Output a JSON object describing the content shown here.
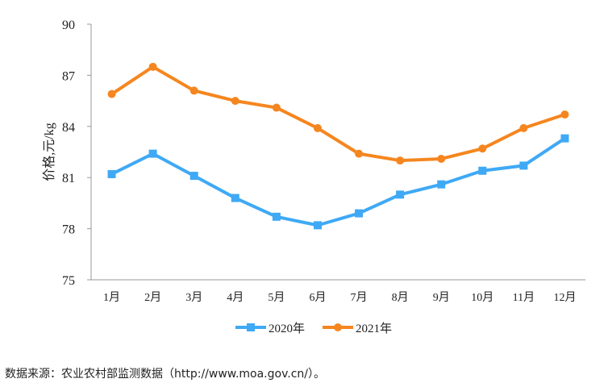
{
  "chart_data": {
    "type": "line",
    "title": "",
    "xlabel": "",
    "ylabel": "价格,元/kg",
    "ylim": [
      75,
      90
    ],
    "yticks": [
      "75",
      "78",
      "81",
      "84",
      "87",
      "90"
    ],
    "categories": [
      "1月",
      "2月",
      "3月",
      "4月",
      "5月",
      "6月",
      "7月",
      "8月",
      "9月",
      "10月",
      "11月",
      "12月"
    ],
    "grid": false,
    "legend": "bottom",
    "series": [
      {
        "name": "2020年",
        "color": "#3fa9f5",
        "marker": "square",
        "values": [
          81.2,
          82.4,
          81.1,
          79.8,
          78.7,
          78.2,
          78.9,
          80.0,
          80.6,
          81.4,
          81.7,
          83.3
        ]
      },
      {
        "name": "2021年",
        "color": "#f5861f",
        "marker": "circle",
        "values": [
          85.9,
          87.5,
          86.1,
          85.5,
          85.1,
          83.9,
          82.4,
          82.0,
          82.1,
          82.7,
          83.9,
          84.7
        ]
      }
    ]
  },
  "source": "数据来源：农业农村部监测数据（http://www.moa.gov.cn/）。"
}
